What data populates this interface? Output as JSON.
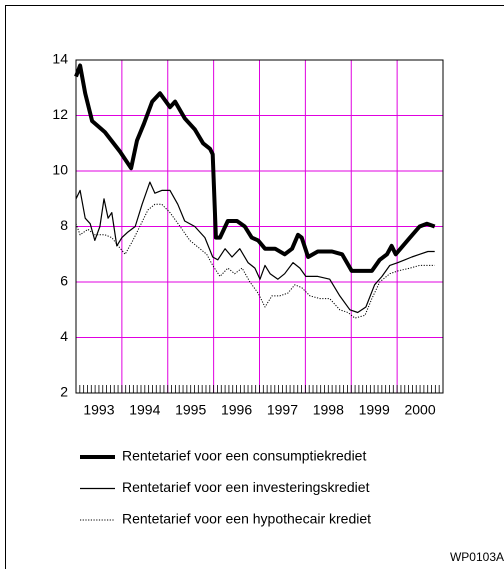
{
  "chart_data": {
    "type": "line",
    "xlim": [
      1993,
      2001
    ],
    "xticks": [
      {
        "value": 1993.5,
        "label": "1993"
      },
      {
        "value": 1994.5,
        "label": "1994"
      },
      {
        "value": 1995.5,
        "label": "1995"
      },
      {
        "value": 1996.5,
        "label": "1996"
      },
      {
        "value": 1997.5,
        "label": "1997"
      },
      {
        "value": 1998.5,
        "label": "1998"
      },
      {
        "value": 1999.5,
        "label": "1999"
      },
      {
        "value": 2000.5,
        "label": "2000"
      }
    ],
    "xgrid": [
      1994,
      1995,
      1996,
      1997,
      1998,
      1999,
      2000
    ],
    "ylim": [
      2,
      14
    ],
    "yticks": [
      2,
      4,
      6,
      8,
      10,
      12,
      14
    ],
    "grid": true,
    "grid_color": "#e000e0",
    "series": [
      {
        "name": "Rentetarief voor een consumptiekrediet",
        "color": "#000000",
        "width": 4,
        "style": "solid",
        "x": [
          1993.0,
          1993.09,
          1993.2,
          1993.35,
          1993.63,
          1993.96,
          1994.2,
          1994.33,
          1994.48,
          1994.66,
          1994.83,
          1995.05,
          1995.16,
          1995.37,
          1995.59,
          1995.77,
          1995.92,
          1995.98,
          1996.05,
          1996.14,
          1996.31,
          1996.51,
          1996.68,
          1996.83,
          1996.97,
          1997.12,
          1997.34,
          1997.55,
          1997.71,
          1997.84,
          1997.92,
          1998.06,
          1998.27,
          1998.58,
          1998.8,
          1999.01,
          1999.45,
          1999.62,
          1999.78,
          1999.88,
          1999.97,
          2000.28,
          2000.49,
          2000.65,
          2000.82
        ],
        "values": [
          13.4,
          13.8,
          12.8,
          11.8,
          11.4,
          10.7,
          10.1,
          11.1,
          11.7,
          12.5,
          12.8,
          12.3,
          12.5,
          11.9,
          11.5,
          11.0,
          10.8,
          10.6,
          7.6,
          7.6,
          8.2,
          8.2,
          8.0,
          7.6,
          7.5,
          7.2,
          7.2,
          7.0,
          7.2,
          7.7,
          7.6,
          6.9,
          7.1,
          7.1,
          7.0,
          6.4,
          6.4,
          6.8,
          7.0,
          7.3,
          7.0,
          7.6,
          8.0,
          8.1,
          8.0
        ]
      },
      {
        "name": "Rentetarief voor een investeringskrediet",
        "color": "#000000",
        "width": 1.2,
        "style": "solid",
        "x": [
          1993.0,
          1993.09,
          1993.2,
          1993.31,
          1993.41,
          1993.52,
          1993.61,
          1993.7,
          1993.78,
          1993.89,
          1994.0,
          1994.13,
          1994.29,
          1994.44,
          1994.61,
          1994.72,
          1994.87,
          1995.05,
          1995.22,
          1995.37,
          1995.59,
          1995.81,
          1995.98,
          1996.09,
          1996.25,
          1996.4,
          1996.57,
          1996.75,
          1996.9,
          1997.01,
          1997.12,
          1997.23,
          1997.4,
          1997.55,
          1997.73,
          1997.88,
          1998.01,
          1998.27,
          1998.53,
          1998.75,
          1998.97,
          1999.14,
          1999.32,
          1999.51,
          1999.67,
          1999.84,
          2000.02,
          2000.17,
          2000.32,
          2000.49,
          2000.67,
          2000.82
        ],
        "values": [
          9.0,
          9.3,
          8.3,
          8.1,
          7.5,
          8.0,
          9.0,
          8.3,
          8.5,
          7.3,
          7.6,
          7.8,
          8.0,
          8.8,
          9.6,
          9.2,
          9.3,
          9.3,
          8.8,
          8.2,
          8.0,
          7.6,
          6.9,
          6.8,
          7.2,
          6.9,
          7.2,
          6.7,
          6.5,
          6.1,
          6.6,
          6.3,
          6.1,
          6.3,
          6.7,
          6.5,
          6.2,
          6.2,
          6.1,
          5.5,
          5.0,
          4.9,
          5.1,
          5.9,
          6.2,
          6.6,
          6.7,
          6.8,
          6.9,
          7.0,
          7.1,
          7.1
        ]
      },
      {
        "name": "Rentetarief voor een hypothecair krediet",
        "color": "#000000",
        "width": 1,
        "style": "dotted",
        "x": [
          1993.0,
          1993.09,
          1993.26,
          1993.41,
          1993.63,
          1993.78,
          1993.92,
          1994.07,
          1994.24,
          1994.39,
          1994.57,
          1994.72,
          1994.87,
          1995.05,
          1995.27,
          1995.48,
          1995.7,
          1995.85,
          1995.98,
          1996.14,
          1996.31,
          1996.46,
          1996.62,
          1996.79,
          1996.97,
          1997.12,
          1997.27,
          1997.44,
          1997.62,
          1997.77,
          1997.92,
          1998.1,
          1998.32,
          1998.53,
          1998.75,
          1998.93,
          1999.08,
          1999.3,
          1999.45,
          1999.62,
          1999.84,
          2000.02,
          2000.28,
          2000.49,
          2000.82
        ],
        "values": [
          8.1,
          7.7,
          7.9,
          7.7,
          7.7,
          7.6,
          7.3,
          7.0,
          7.5,
          8.0,
          8.6,
          8.8,
          8.8,
          8.5,
          8.0,
          7.5,
          7.2,
          7.0,
          6.6,
          6.2,
          6.5,
          6.3,
          6.5,
          6.0,
          5.6,
          5.1,
          5.5,
          5.5,
          5.6,
          5.9,
          5.8,
          5.5,
          5.4,
          5.4,
          5.0,
          4.9,
          4.7,
          4.8,
          5.4,
          6.0,
          6.3,
          6.4,
          6.5,
          6.6,
          6.6
        ]
      }
    ],
    "annotation": "WP0103A"
  }
}
